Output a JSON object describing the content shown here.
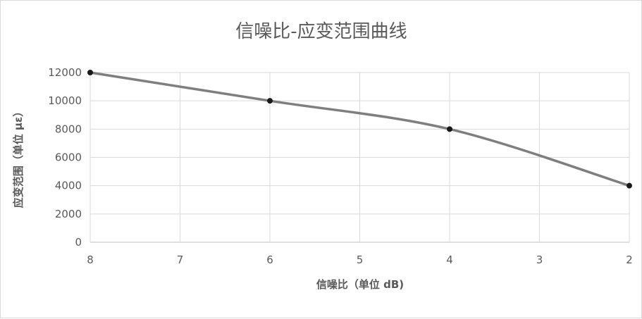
{
  "chart_data": {
    "type": "scatter",
    "title": "信噪比-应变范围曲线",
    "xlabel": "信噪比（单位 dB)",
    "ylabel": "应变范围（单位 με）",
    "x": [
      8,
      6,
      4,
      2
    ],
    "series": [
      {
        "values": [
          12000,
          10000,
          8000,
          4000
        ],
        "color": "#7f7f7f",
        "marker_color": "#1a1a1a",
        "smooth": true
      }
    ],
    "xlim": [
      8,
      2
    ],
    "x_reversed": true,
    "x_ticks": [
      "8",
      "7",
      "6",
      "5",
      "4",
      "3",
      "2"
    ],
    "ylim": [
      0,
      12000
    ],
    "y_ticks": [
      "0",
      "2000",
      "4000",
      "6000",
      "8000",
      "10000",
      "12000"
    ],
    "grid": true,
    "legend": "none"
  }
}
